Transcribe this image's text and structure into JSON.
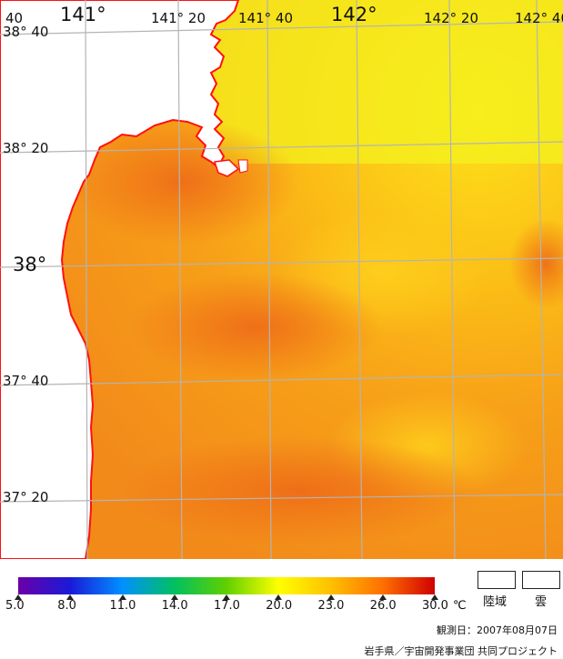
{
  "map": {
    "lat_labels": [
      {
        "text": "38° 40",
        "major": false
      },
      {
        "text": "38° 20",
        "major": false
      },
      {
        "text": "38°",
        "major": true
      },
      {
        "text": "37° 40",
        "major": false
      },
      {
        "text": "37° 20",
        "major": false
      }
    ],
    "lon_labels": [
      {
        "text": "40",
        "major": false
      },
      {
        "text": "141°",
        "major": true
      },
      {
        "text": "141° 20",
        "major": false
      },
      {
        "text": "141° 40",
        "major": false
      },
      {
        "text": "142°",
        "major": true
      },
      {
        "text": "142° 20",
        "major": false
      },
      {
        "text": "142° 40",
        "major": false
      }
    ],
    "colors": {
      "land": "#ffffff",
      "coastline": "#ff1010",
      "grid": "#b4b4b4"
    }
  },
  "colorbar": {
    "ticks": [
      "5.0",
      "8.0",
      "11.0",
      "14.0",
      "17.0",
      "20.0",
      "23.0",
      "26.0",
      "30.0"
    ],
    "unit": "℃",
    "stops": [
      "#6a00a8",
      "#1a1ad8",
      "#0090ff",
      "#00c060",
      "#60d000",
      "#ffff00",
      "#ffc000",
      "#ff7000",
      "#d00000"
    ]
  },
  "legend": {
    "land_label": "陸域",
    "cloud_label": "雲"
  },
  "footer": {
    "observation_date": "観測日：2007年08月07日",
    "credit": "岩手県／宇宙開発事業団 共同プロジェクト"
  }
}
